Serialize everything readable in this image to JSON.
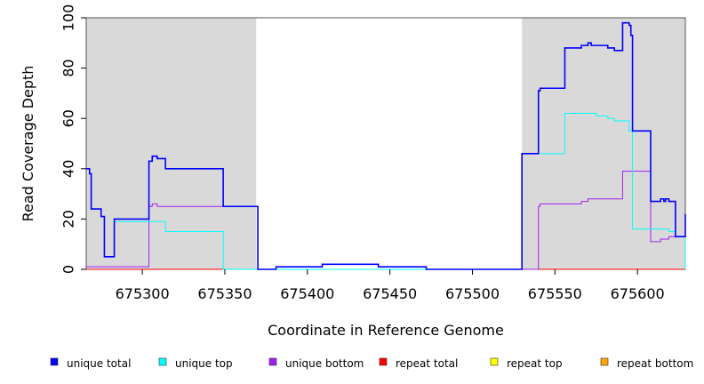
{
  "chart_data": {
    "type": "line",
    "title": "",
    "xlabel": "Coordinate in Reference Genome",
    "ylabel": "Read Coverage Depth",
    "xlim": [
      675266,
      675629
    ],
    "ylim": [
      0,
      100
    ],
    "x_ticks": [
      675300,
      675350,
      675400,
      675450,
      675500,
      675550,
      675600
    ],
    "y_ticks": [
      0,
      20,
      40,
      60,
      80,
      100
    ],
    "shaded_regions": [
      {
        "x0": 675266,
        "x1": 675369,
        "color": "#d9d9d9"
      },
      {
        "x0": 675530,
        "x1": 675629,
        "color": "#d9d9d9"
      }
    ],
    "legend_position": "bottom",
    "legend": [
      {
        "label": "unique total",
        "color": "#0000ff"
      },
      {
        "label": "unique top",
        "color": "#00ffff"
      },
      {
        "label": "unique bottom",
        "color": "#a020f0"
      },
      {
        "label": "repeat total",
        "color": "#ff0000"
      },
      {
        "label": "repeat top",
        "color": "#ffff00"
      },
      {
        "label": "repeat bottom",
        "color": "#ffa500"
      }
    ],
    "series": [
      {
        "name": "unique total",
        "color": "#0000ff",
        "step_points": [
          [
            675266,
            40
          ],
          [
            675268,
            38
          ],
          [
            675269,
            24
          ],
          [
            675275,
            21
          ],
          [
            675277,
            5
          ],
          [
            675283,
            20
          ],
          [
            675304,
            43
          ],
          [
            675306,
            45
          ],
          [
            675309,
            44
          ],
          [
            675314,
            40
          ],
          [
            675349,
            25
          ],
          [
            675370,
            0
          ],
          [
            675381,
            1
          ],
          [
            675409,
            2
          ],
          [
            675443,
            1
          ],
          [
            675472,
            0
          ],
          [
            675530,
            46
          ],
          [
            675540,
            71
          ],
          [
            675541,
            72
          ],
          [
            675556,
            88
          ],
          [
            675566,
            89
          ],
          [
            675570,
            90
          ],
          [
            675572,
            89
          ],
          [
            675582,
            88
          ],
          [
            675586,
            87
          ],
          [
            675591,
            98
          ],
          [
            675595,
            97
          ],
          [
            675596,
            93
          ],
          [
            675597,
            55
          ],
          [
            675608,
            27
          ],
          [
            675614,
            28
          ],
          [
            675616,
            27
          ],
          [
            675617,
            28
          ],
          [
            675619,
            27
          ],
          [
            675623,
            13
          ],
          [
            675632,
            22
          ],
          [
            675629,
            22
          ]
        ]
      },
      {
        "name": "unique top",
        "color": "#00ffff",
        "step_points": [
          [
            675266,
            40
          ],
          [
            675268,
            38
          ],
          [
            675269,
            24
          ],
          [
            675275,
            21
          ],
          [
            675277,
            5
          ],
          [
            675283,
            19
          ],
          [
            675314,
            15
          ],
          [
            675349,
            0
          ],
          [
            675530,
            46
          ],
          [
            675556,
            62
          ],
          [
            675575,
            61
          ],
          [
            675582,
            60
          ],
          [
            675586,
            59
          ],
          [
            675595,
            55
          ],
          [
            675597,
            16
          ],
          [
            675619,
            15
          ],
          [
            675623,
            13
          ],
          [
            675629,
            0
          ]
        ]
      },
      {
        "name": "unique bottom",
        "color": "#a020f0",
        "step_points": [
          [
            675266,
            1
          ],
          [
            675304,
            25
          ],
          [
            675306,
            26
          ],
          [
            675309,
            25
          ],
          [
            675349,
            25
          ],
          [
            675370,
            0
          ],
          [
            675540,
            25
          ],
          [
            675541,
            26
          ],
          [
            675566,
            27
          ],
          [
            675570,
            28
          ],
          [
            675591,
            39
          ],
          [
            675608,
            11
          ],
          [
            675614,
            12
          ],
          [
            675619,
            13
          ],
          [
            675629,
            13
          ]
        ]
      },
      {
        "name": "repeat total",
        "color": "#ff0000",
        "step_points": [
          [
            675266,
            0
          ],
          [
            675629,
            0
          ]
        ]
      },
      {
        "name": "repeat top",
        "color": "#ffff00",
        "step_points": [
          [
            675266,
            0
          ],
          [
            675629,
            0
          ]
        ]
      },
      {
        "name": "repeat bottom",
        "color": "#ffa500",
        "step_points": [
          [
            675266,
            0
          ],
          [
            675629,
            0
          ]
        ]
      }
    ]
  }
}
